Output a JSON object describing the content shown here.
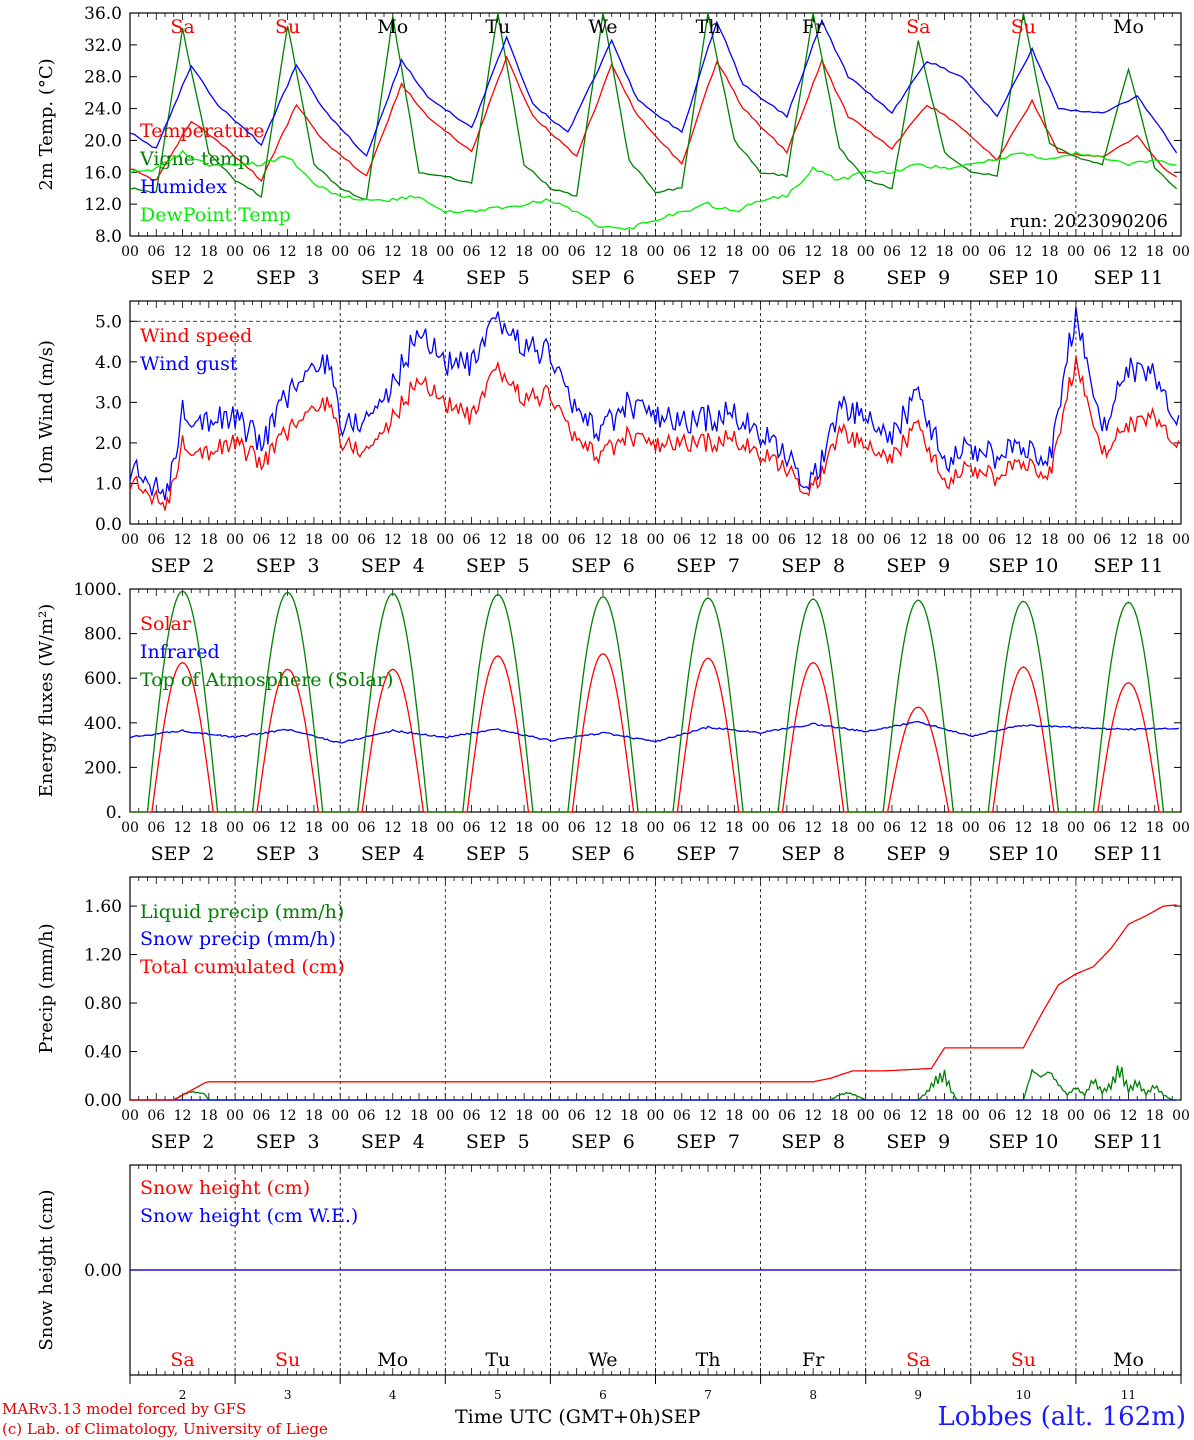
{
  "chart_data": [
    {
      "type": "line",
      "ylabel": "2m Temp. (°C)",
      "ylim": [
        8.0,
        36.0
      ],
      "yticks": [
        "8.0",
        "12.0",
        "16.0",
        "20.0",
        "24.0",
        "28.0",
        "32.0",
        "36.0"
      ],
      "run_label": "run: 2023090206",
      "series": [
        {
          "name": "Temperature",
          "color": "#ff0000",
          "x_hours": [
            0,
            6,
            14,
            20,
            30,
            38,
            44,
            54,
            62,
            68,
            78,
            86,
            92,
            102,
            110,
            116,
            126,
            134,
            140,
            150,
            158,
            164,
            174,
            182,
            188,
            198,
            206,
            212,
            222,
            230,
            236,
            239
          ],
          "values": [
            16.5,
            15.0,
            22.5,
            20.0,
            15.0,
            24.5,
            20.0,
            15.5,
            27.0,
            23.0,
            18.5,
            30.5,
            23.0,
            18.0,
            29.5,
            23.0,
            17.0,
            30.0,
            24.0,
            18.5,
            30.0,
            23.0,
            19.0,
            24.5,
            22.5,
            17.5,
            25.0,
            18.5,
            18.0,
            20.5,
            16.5,
            15.5
          ]
        },
        {
          "name": "Vigne temp",
          "color": "#008000",
          "x_hours": [
            0,
            6,
            12,
            18,
            24,
            30,
            36,
            42,
            48,
            54,
            60,
            66,
            72,
            78,
            84,
            90,
            96,
            102,
            108,
            114,
            120,
            126,
            132,
            138,
            144,
            150,
            156,
            162,
            168,
            174,
            180,
            186,
            192,
            198,
            204,
            210,
            216,
            222,
            228,
            234,
            239
          ],
          "values": [
            14.0,
            13.5,
            34.0,
            18.5,
            15.0,
            13.0,
            34.5,
            17.0,
            14.0,
            12.5,
            35.5,
            16.0,
            15.5,
            14.5,
            36.0,
            17.0,
            14.0,
            13.0,
            36.0,
            17.5,
            13.5,
            14.0,
            36.0,
            20.0,
            16.0,
            15.5,
            36.0,
            19.0,
            15.0,
            14.0,
            32.5,
            18.5,
            16.0,
            15.5,
            36.0,
            19.5,
            18.0,
            17.0,
            29.0,
            16.5,
            14.0
          ]
        },
        {
          "name": "Humidex",
          "color": "#0000ff",
          "x_hours": [
            0,
            6,
            14,
            20,
            30,
            38,
            44,
            54,
            62,
            68,
            78,
            86,
            92,
            100,
            110,
            116,
            126,
            134,
            140,
            150,
            158,
            164,
            174,
            182,
            190,
            198,
            206,
            212,
            222,
            230,
            236,
            239
          ],
          "values": [
            21.0,
            19.0,
            29.5,
            24.5,
            19.5,
            29.5,
            24.0,
            18.0,
            30.0,
            25.5,
            21.5,
            33.0,
            24.5,
            21.0,
            32.5,
            25.0,
            21.0,
            35.0,
            27.0,
            23.0,
            35.0,
            28.0,
            23.5,
            30.0,
            28.0,
            23.0,
            31.5,
            24.0,
            23.5,
            25.5,
            21.0,
            18.5
          ]
        },
        {
          "name": "DewPoint Temp",
          "color": "#00ee00",
          "x_hours": [
            0,
            6,
            12,
            18,
            24,
            30,
            36,
            42,
            48,
            54,
            60,
            66,
            72,
            78,
            84,
            90,
            96,
            102,
            108,
            114,
            120,
            126,
            132,
            138,
            144,
            150,
            156,
            162,
            168,
            174,
            180,
            186,
            192,
            198,
            204,
            210,
            216,
            222,
            228,
            234,
            239
          ],
          "values": [
            16.0,
            16.5,
            18.5,
            17.0,
            17.0,
            17.0,
            18.0,
            14.5,
            13.0,
            12.5,
            12.5,
            13.0,
            11.0,
            11.0,
            11.5,
            12.0,
            12.5,
            11.0,
            9.0,
            9.0,
            10.0,
            11.0,
            12.0,
            11.0,
            12.5,
            13.0,
            16.5,
            15.0,
            16.0,
            16.0,
            17.0,
            16.5,
            17.0,
            17.5,
            18.5,
            17.5,
            18.5,
            18.0,
            17.0,
            17.5,
            17.0
          ]
        }
      ]
    },
    {
      "type": "line",
      "ylabel": "10m Wind (m/s)",
      "ylim": [
        0.0,
        5.5
      ],
      "yticks": [
        "0.0",
        "1.0",
        "2.0",
        "3.0",
        "4.0",
        "5.0"
      ],
      "series": [
        {
          "name": "Wind speed",
          "color": "#ff0000",
          "x_hours": [
            0,
            6,
            8,
            12,
            18,
            24,
            30,
            36,
            42,
            46,
            48,
            54,
            60,
            66,
            72,
            78,
            84,
            90,
            96,
            102,
            108,
            114,
            120,
            126,
            132,
            138,
            144,
            150,
            156,
            162,
            168,
            174,
            180,
            186,
            192,
            198,
            204,
            210,
            216,
            222,
            228,
            234,
            239
          ],
          "values": [
            1.0,
            0.7,
            0.2,
            2.0,
            1.8,
            2.0,
            1.5,
            2.3,
            2.8,
            3.1,
            2.0,
            1.8,
            2.6,
            3.6,
            3.0,
            2.6,
            3.8,
            3.1,
            3.2,
            2.0,
            1.7,
            2.2,
            1.9,
            2.0,
            2.0,
            2.1,
            1.7,
            1.3,
            0.8,
            2.3,
            1.9,
            1.6,
            2.5,
            1.0,
            1.4,
            1.1,
            1.6,
            1.2,
            4.1,
            1.8,
            2.4,
            2.6,
            2.0
          ]
        },
        {
          "name": "Wind gust",
          "color": "#0000ff",
          "x_hours": [
            0,
            6,
            8,
            12,
            18,
            24,
            30,
            36,
            42,
            46,
            48,
            54,
            60,
            66,
            72,
            78,
            84,
            90,
            96,
            102,
            108,
            114,
            120,
            126,
            132,
            138,
            144,
            150,
            156,
            162,
            168,
            174,
            180,
            186,
            192,
            198,
            204,
            210,
            216,
            222,
            228,
            234,
            239
          ],
          "values": [
            1.3,
            1.0,
            0.4,
            2.8,
            2.6,
            2.6,
            2.0,
            3.2,
            3.8,
            4.1,
            2.4,
            2.6,
            3.4,
            4.8,
            4.0,
            3.9,
            5.0,
            4.4,
            4.2,
            2.7,
            2.3,
            3.0,
            2.6,
            2.5,
            2.6,
            2.7,
            2.2,
            1.6,
            1.0,
            2.9,
            2.6,
            2.1,
            3.3,
            1.5,
            1.9,
            1.6,
            2.0,
            1.6,
            5.3,
            2.4,
            3.8,
            3.6,
            2.6
          ]
        }
      ],
      "reference_line": 5.0
    },
    {
      "type": "line",
      "ylabel": "Energy fluxes (W/m²)",
      "ylim": [
        0,
        1000
      ],
      "yticks": [
        "0.",
        "200.",
        "400.",
        "600.",
        "800.",
        "1000."
      ],
      "series": [
        {
          "name": "Solar",
          "color": "#ff0000",
          "daily_peak": [
            670,
            640,
            640,
            700,
            710,
            690,
            670,
            470,
            650,
            580
          ],
          "day_window_hours": [
            5,
            19
          ]
        },
        {
          "name": "Infrared",
          "color": "#0000ff",
          "x_hours": [
            0,
            12,
            24,
            36,
            48,
            60,
            72,
            84,
            96,
            108,
            120,
            132,
            144,
            156,
            168,
            180,
            192,
            204,
            216,
            228,
            239
          ],
          "values": [
            335,
            365,
            335,
            370,
            310,
            365,
            335,
            370,
            320,
            355,
            315,
            380,
            355,
            395,
            360,
            405,
            340,
            390,
            380,
            370,
            375
          ]
        },
        {
          "name": "Top of Atmosphere (Solar)",
          "color": "#008000",
          "daily_peak": [
            990,
            985,
            980,
            975,
            965,
            960,
            955,
            950,
            945,
            940
          ],
          "day_window_hours": [
            4,
            20
          ]
        }
      ]
    },
    {
      "type": "line",
      "ylabel": "Precip (mm/h)",
      "ylim": [
        0.0,
        1.84
      ],
      "yticks": [
        "0.00",
        "0.40",
        "0.80",
        "1.20",
        "1.60"
      ],
      "series": [
        {
          "name": "Liquid precip (mm/h)",
          "color": "#008000",
          "x_hours": [
            0,
            10,
            12,
            14,
            17,
            18,
            160,
            162,
            164,
            166,
            168,
            180,
            182,
            184,
            186,
            188,
            189,
            204,
            206,
            208,
            210,
            212,
            214,
            216,
            218,
            220,
            222,
            224,
            226,
            228,
            230,
            232,
            234,
            236,
            238
          ],
          "values": [
            0,
            0,
            0.05,
            0.08,
            0.06,
            0,
            0,
            0.05,
            0.07,
            0.04,
            0,
            0,
            0.08,
            0.2,
            0.25,
            0.06,
            0,
            0,
            0.28,
            0.22,
            0.27,
            0.15,
            0.05,
            0.12,
            0.05,
            0.2,
            0.08,
            0.15,
            0.33,
            0.1,
            0.18,
            0.06,
            0.14,
            0.05,
            0
          ]
        },
        {
          "name": "Snow precip (mm/h)",
          "color": "#0000ff",
          "x_hours": [
            0,
            239
          ],
          "values": [
            0,
            0
          ]
        },
        {
          "name": "Total cumulated (cm)",
          "color": "#ff0000",
          "x_hours": [
            0,
            10,
            17,
            18,
            156,
            160,
            165,
            172,
            183,
            186,
            204,
            208,
            212,
            216,
            220,
            224,
            228,
            232,
            236,
            239
          ],
          "values": [
            0,
            0,
            0.14,
            0.15,
            0.15,
            0.18,
            0.24,
            0.24,
            0.26,
            0.43,
            0.43,
            0.7,
            0.95,
            1.04,
            1.1,
            1.25,
            1.45,
            1.52,
            1.6,
            1.61
          ]
        }
      ]
    },
    {
      "type": "line",
      "ylabel": "Snow height (cm)",
      "ylim": [
        -1.0,
        1.0
      ],
      "yticks": [
        "0.00"
      ],
      "series": [
        {
          "name": "Snow height (cm)",
          "color": "#ff0000",
          "x_hours": [
            0,
            239
          ],
          "values": [
            0,
            0
          ]
        },
        {
          "name": "Snow height (cm W.E.)",
          "color": "#0000ff",
          "x_hours": [
            0,
            239
          ],
          "values": [
            0,
            0
          ]
        }
      ]
    }
  ],
  "x_axis": {
    "hour_labels": [
      "00",
      "06",
      "12",
      "18"
    ],
    "date_labels": [
      "SEP  2",
      "SEP  3",
      "SEP  4",
      "SEP  5",
      "SEP  6",
      "SEP  7",
      "SEP  8",
      "SEP  9",
      "SEP 10",
      "SEP 11"
    ],
    "day_numbers": [
      "2",
      "3",
      "4",
      "5",
      "6",
      "7",
      "8",
      "9",
      "10",
      "11"
    ],
    "weekdays": [
      "Sa",
      "Su",
      "Mo",
      "Tu",
      "We",
      "Th",
      "Fr",
      "Sa",
      "Su",
      "Mo"
    ],
    "weekend_color": "#ff0000",
    "title": "Time UTC (GMT+0h)",
    "month": "SEP"
  },
  "footer": {
    "model": "MARv3.13 model forced by GFS",
    "lab": "(c) Lab. of Climatology, University of Liege",
    "station": "Lobbes (alt. 162m)"
  }
}
